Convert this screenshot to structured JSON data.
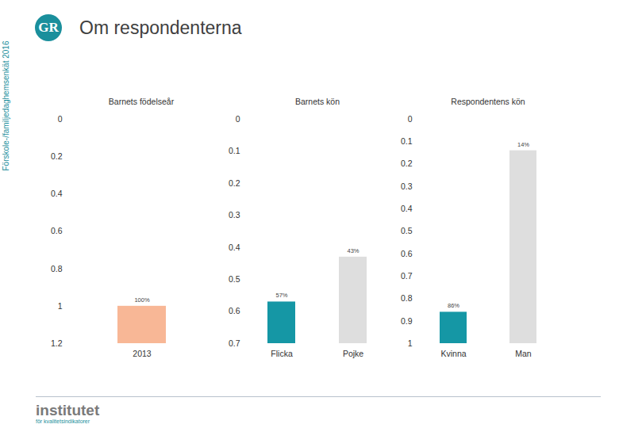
{
  "page": {
    "title": "Om respondenterna",
    "side_text": "Förskole-/familjedaghemsenkät 2016",
    "logo": "GR",
    "footer_logo": "institutet",
    "footer_logo_subtitle": "för kvalitetsindikatorer"
  },
  "chart_data": [
    {
      "type": "bar",
      "title": "Barnets födelseår",
      "categories": [
        "2013"
      ],
      "values": [
        1
      ],
      "value_labels": [
        "100%"
      ],
      "colors": [
        "#f8b796"
      ],
      "ylim": [
        1.2,
        0
      ],
      "yticks": [
        0,
        0.2,
        0.4,
        0.6,
        0.8,
        1,
        1.2
      ],
      "data_labels": true,
      "grid": false
    },
    {
      "type": "bar",
      "title": "Barnets kön",
      "categories": [
        "Flicka",
        "Pojke"
      ],
      "values": [
        0.57,
        0.43
      ],
      "value_labels": [
        "57%",
        "43%"
      ],
      "colors": [
        "#1597a5",
        "#dedede"
      ],
      "ylim": [
        0.7,
        0
      ],
      "yticks": [
        0,
        0.1,
        0.2,
        0.3,
        0.4,
        0.5,
        0.6,
        0.7
      ],
      "data_labels": true,
      "grid": false
    },
    {
      "type": "bar",
      "title": "Respondentens kön",
      "categories": [
        "Kvinna",
        "Man"
      ],
      "values": [
        0.86,
        0.14
      ],
      "value_labels": [
        "86%",
        "14%"
      ],
      "colors": [
        "#1597a5",
        "#dedede"
      ],
      "ylim": [
        1,
        0
      ],
      "yticks": [
        0,
        0.1,
        0.2,
        0.3,
        0.4,
        0.5,
        0.6,
        0.7,
        0.8,
        0.9,
        1
      ],
      "data_labels": true,
      "grid": false
    }
  ]
}
